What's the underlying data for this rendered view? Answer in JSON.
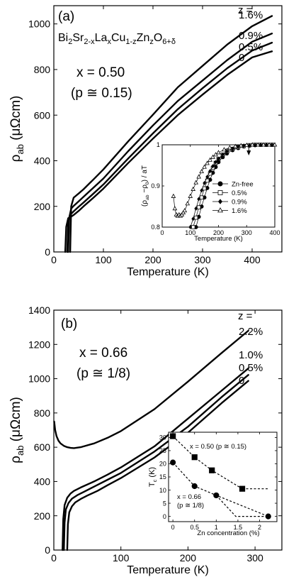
{
  "chart_data": [
    {
      "id": "a",
      "type": "line",
      "panel_label": "(a)",
      "compound": "Bi2Sr2-xLaxCu1-zZnzO6+δ",
      "compound_parts": [
        {
          "t": "Bi",
          "s": "n"
        },
        {
          "t": "2",
          "s": "sub"
        },
        {
          "t": "Sr",
          "s": "n"
        },
        {
          "t": "2-x",
          "s": "sub"
        },
        {
          "t": "La",
          "s": "n"
        },
        {
          "t": "x",
          "s": "sub"
        },
        {
          "t": "Cu",
          "s": "n"
        },
        {
          "t": "1-z",
          "s": "sub"
        },
        {
          "t": "Zn",
          "s": "n"
        },
        {
          "t": "z",
          "s": "sub"
        },
        {
          "t": "O",
          "s": "n"
        },
        {
          "t": "6+δ",
          "s": "sub"
        }
      ],
      "x_text": "x = 0.50",
      "p_text": "(p ≅ 0.15)",
      "z_header": "z =",
      "xlabel": "Temperature (K)",
      "ylabel_main": "ρ",
      "ylabel_sub": "ab",
      "ylabel_unit": " (μΩcm)",
      "xlim": [
        0,
        460
      ],
      "ylim": [
        0,
        1080
      ],
      "xticks": [
        0,
        100,
        200,
        300,
        400
      ],
      "xtick_labels": [
        "0",
        "100",
        "200",
        "300",
        "400"
      ],
      "yticks": [
        0,
        200,
        400,
        600,
        800,
        1000
      ],
      "ytick_labels": [
        "0",
        "200",
        "400",
        "600",
        "800",
        "1000"
      ],
      "series": [
        {
          "name": "1.6%",
          "x": [
            33,
            35,
            40,
            50,
            60,
            80,
            100,
            150,
            200,
            250,
            300,
            350,
            400,
            440
          ],
          "y": [
            0,
            200,
            238,
            256,
            275,
            318,
            362,
            485,
            602,
            722,
            816,
            910,
            990,
            1035
          ]
        },
        {
          "name": "0.9%",
          "x": [
            29,
            31,
            35,
            40,
            50,
            60,
            80,
            100,
            150,
            200,
            250,
            300,
            350,
            400,
            440
          ],
          "y": [
            0,
            150,
            190,
            202,
            222,
            242,
            282,
            322,
            442,
            555,
            662,
            752,
            842,
            922,
            958
          ]
        },
        {
          "name": "0.5%",
          "x": [
            27,
            29,
            33,
            40,
            50,
            60,
            80,
            100,
            150,
            200,
            250,
            300,
            350,
            400,
            440
          ],
          "y": [
            0,
            125,
            163,
            178,
            198,
            217,
            256,
            296,
            410,
            520,
            626,
            718,
            806,
            883,
            918
          ]
        },
        {
          "name": "0",
          "x": [
            23,
            25,
            29,
            35,
            40,
            50,
            60,
            80,
            100,
            150,
            200,
            250,
            300,
            350,
            400,
            440
          ],
          "y": [
            0,
            110,
            148,
            155,
            162,
            180,
            200,
            238,
            278,
            390,
            497,
            600,
            690,
            777,
            853,
            880
          ]
        }
      ],
      "inset": {
        "type": "line",
        "xlabel": "Temperature (K)",
        "ylabel_parts": [
          {
            "t": "(ρ",
            "s": "n"
          },
          {
            "t": "ab",
            "s": "sub"
          },
          {
            "t": " −ρ",
            "s": "n"
          },
          {
            "t": "0",
            "s": "sub"
          },
          {
            "t": ") / aT",
            "s": "n"
          }
        ],
        "xlim": [
          0,
          400
        ],
        "ylim": [
          0.8,
          1.0
        ],
        "xticks": [
          0,
          100,
          200,
          300,
          400
        ],
        "xtick_labels": [
          "0",
          "100",
          "200",
          "300",
          "400"
        ],
        "yticks": [
          0.8,
          0.9,
          1.0
        ],
        "ytick_labels": [
          "0.8",
          "0.9",
          "1"
        ],
        "arrow_x": 300,
        "series": [
          {
            "name": "Zn-free",
            "marker": "filled-circle",
            "x": [
              120,
              130,
              140,
              150,
              160,
              170,
              180,
              190,
              200,
              215,
              230,
              250,
              270,
              290,
              310,
              330,
              350,
              370,
              390
            ],
            "y": [
              0.8,
              0.825,
              0.85,
              0.872,
              0.895,
              0.915,
              0.932,
              0.946,
              0.958,
              0.97,
              0.979,
              0.987,
              0.992,
              0.996,
              0.998,
              0.999,
              1.0,
              1.0,
              1.0
            ]
          },
          {
            "name": "0.5%",
            "marker": "open-square",
            "x": [
              110,
              120,
              130,
              140,
              150,
              160,
              170,
              180,
              190,
              200,
              215,
              230,
              250,
              270,
              290,
              310,
              330,
              350,
              370,
              390
            ],
            "y": [
              0.8,
              0.823,
              0.848,
              0.872,
              0.894,
              0.913,
              0.93,
              0.944,
              0.956,
              0.966,
              0.976,
              0.984,
              0.99,
              0.994,
              0.997,
              0.999,
              1.0,
              1.0,
              1.0,
              1.0
            ]
          },
          {
            "name": "0.9%",
            "marker": "filled-diamond",
            "x": [
              100,
              110,
              120,
              130,
              140,
              150,
              160,
              170,
              180,
              190,
              200,
              215,
              230,
              250,
              270,
              290,
              310,
              330,
              350,
              370,
              390
            ],
            "y": [
              0.8,
              0.82,
              0.845,
              0.868,
              0.889,
              0.907,
              0.922,
              0.936,
              0.948,
              0.958,
              0.966,
              0.976,
              0.984,
              0.99,
              0.995,
              0.998,
              0.999,
              1.0,
              1.0,
              1.0,
              1.0
            ]
          },
          {
            "name": "1.6%",
            "marker": "open-triangle",
            "x": [
              40,
              45,
              50,
              55,
              60,
              65,
              70,
              75,
              80,
              90,
              100,
              110,
              120,
              130,
              140,
              150,
              160,
              170,
              180,
              190,
              200,
              220,
              240,
              260,
              280,
              300,
              320,
              340,
              360,
              380,
              400
            ],
            "y": [
              0.875,
              0.845,
              0.83,
              0.827,
              0.83,
              0.827,
              0.83,
              0.835,
              0.84,
              0.857,
              0.875,
              0.892,
              0.908,
              0.922,
              0.935,
              0.946,
              0.955,
              0.963,
              0.97,
              0.976,
              0.981,
              0.988,
              0.993,
              0.996,
              0.998,
              0.999,
              1.0,
              1.0,
              1.0,
              1.0,
              1.0
            ]
          }
        ]
      }
    },
    {
      "id": "b",
      "type": "line",
      "panel_label": "(b)",
      "x_text": "x = 0.66",
      "p_text": "(p ≅ 1/8)",
      "z_header": "z =",
      "xlabel": "Temperature (K)",
      "ylabel_main": "ρ",
      "ylabel_sub": "ab",
      "ylabel_unit": " (μΩcm)",
      "xlim": [
        0,
        340
      ],
      "ylim": [
        0,
        1400
      ],
      "xticks": [
        0,
        100,
        200,
        300
      ],
      "xtick_labels": [
        "0",
        "100",
        "200",
        "300"
      ],
      "yticks": [
        0,
        200,
        400,
        600,
        800,
        1000,
        1200,
        1400
      ],
      "ytick_labels": [
        "0",
        "200",
        "400",
        "600",
        "800",
        "1000",
        "1200",
        "1400"
      ],
      "series": [
        {
          "name": "2.2%",
          "x": [
            0.5,
            2,
            4,
            7,
            10,
            15,
            20,
            25,
            30,
            40,
            60,
            80,
            100,
            150,
            200,
            250,
            290
          ],
          "y": [
            750,
            700,
            665,
            638,
            622,
            608,
            600,
            596,
            595,
            600,
            622,
            655,
            694,
            822,
            983,
            1150,
            1280
          ]
        },
        {
          "name": "1.0%",
          "x": [
            13,
            14,
            16,
            20,
            25,
            30,
            40,
            60,
            80,
            100,
            150,
            200,
            250,
            290
          ],
          "y": [
            0,
            180,
            262,
            305,
            330,
            345,
            365,
            400,
            440,
            482,
            605,
            767,
            930,
            1060
          ]
        },
        {
          "name": "0.5%",
          "x": [
            15,
            16,
            18,
            22,
            27,
            35,
            45,
            60,
            80,
            100,
            150,
            200,
            250,
            290
          ],
          "y": [
            0,
            160,
            237,
            275,
            300,
            320,
            340,
            370,
            410,
            450,
            575,
            720,
            892,
            1022
          ]
        },
        {
          "name": "0",
          "x": [
            20,
            21,
            23,
            27,
            32,
            40,
            50,
            65,
            80,
            100,
            150,
            200,
            250,
            290
          ],
          "y": [
            0,
            150,
            220,
            255,
            278,
            298,
            318,
            345,
            378,
            420,
            540,
            685,
            857,
            987
          ]
        }
      ],
      "inset": {
        "type": "scatter",
        "xlabel": "Zn concentration   (%)",
        "ylabel_parts": [
          {
            "t": "T",
            "s": "n"
          },
          {
            "t": "c",
            "s": "sub"
          },
          {
            "t": " (K)",
            "s": "n"
          }
        ],
        "xlim": [
          -0.1,
          2.4
        ],
        "ylim": [
          -2,
          32
        ],
        "xticks": [
          0,
          0.5,
          1,
          1.5,
          2
        ],
        "xtick_labels": [
          "0",
          "0.5",
          "1",
          "1.5",
          "2"
        ],
        "yticks": [
          0,
          5,
          10,
          15,
          20,
          25,
          30
        ],
        "ytick_labels": [
          "0",
          "5",
          "10",
          "15",
          "20",
          "25",
          "30"
        ],
        "series": [
          {
            "name": "x = 0.50 (p ≅ 0.15)",
            "marker": "filled-square",
            "x": [
              0,
              0.5,
              0.9,
              1.6
            ],
            "y": [
              30.5,
              22.5,
              17.5,
              10.5
            ],
            "tail_x": [
              1.6,
              2.2
            ],
            "tail_y": [
              10.5,
              10.5
            ]
          },
          {
            "name": "x = 0.66",
            "name2": "(p ≅ 1/8)",
            "marker": "filled-circle",
            "x": [
              0,
              0.5,
              1.0,
              2.2
            ],
            "y": [
              20.5,
              11.5,
              8.0,
              0
            ],
            "tail_x": [
              1.0,
              1.45,
              2.2
            ],
            "tail_y": [
              8.0,
              0,
              0
            ]
          }
        ]
      }
    }
  ]
}
